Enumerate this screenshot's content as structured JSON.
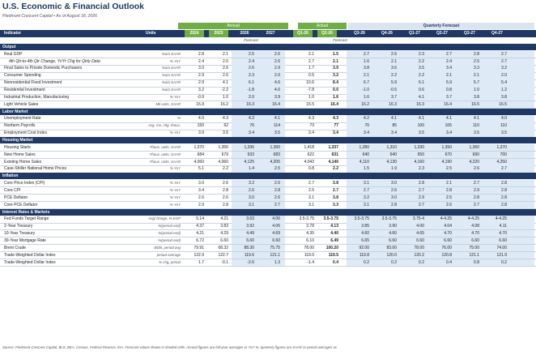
{
  "title": "U.S. Economic & Financial Outlook",
  "subtitle": "Piedmont Crescent Capital  •  As of August 18, 2026",
  "header": {
    "indicator": "Indicator",
    "units": "Units",
    "annual": "Annual",
    "actual": "Actual",
    "quarterly_forecast": "Quarterly Forecast",
    "forecast": "Forecast",
    "columns": [
      "2024",
      "2025",
      "2026",
      "2027",
      "Q1-26",
      "Q2-26",
      "Q3-26",
      "Q4-26",
      "Q1-27",
      "Q2-27",
      "Q3-27",
      "Q4-27"
    ]
  },
  "sections": [
    {
      "title": "Output",
      "rows": [
        {
          "label": "Real GDP",
          "unit": "%a/a SAAR",
          "values": [
            "2.8",
            "2.1",
            "2.5",
            "2.6",
            "2.1",
            "1.5",
            "2.7",
            "2.6",
            "2.3",
            "2.7",
            "2.8",
            "2.7"
          ]
        },
        {
          "label": "4th Qtr-to-4th Qtr Change, Yr/Yr Chg for Qtrly Data",
          "unit": "% YoY",
          "italic": true,
          "values": [
            "2.4",
            "2.0",
            "2.4",
            "2.6",
            "2.7",
            "2.1",
            "1.6",
            "2.1",
            "2.2",
            "2.4",
            "2.5",
            "2.7"
          ]
        },
        {
          "label": "Final Sales to Private Domestic Purchasers",
          "unit": "%a/a SAAR",
          "values": [
            "3.0",
            "2.6",
            "2.6",
            "2.9",
            "1.7",
            "3.9",
            "3.8",
            "3.6",
            "3.5",
            "3.4",
            "3.3",
            "3.2"
          ]
        },
        {
          "label": "Consumer Spending",
          "unit": "%a/a SAAR",
          "values": [
            "2.9",
            "2.6",
            "2.3",
            "2.0",
            "0.5",
            "3.2",
            "2.1",
            "2.2",
            "2.2",
            "2.1",
            "2.1",
            "2.0"
          ]
        },
        {
          "label": "Nonresidential Fixed Investment",
          "unit": "%a/a SAAR",
          "values": [
            "2.9",
            "4.1",
            "6.1",
            "4.6",
            "10.6",
            "8.4",
            "6.7",
            "5.9",
            "6.1",
            "5.9",
            "5.7",
            "5.4"
          ]
        },
        {
          "label": "Residential Investment",
          "unit": "%a/a SAAR",
          "values": [
            "3.2",
            "-2.2",
            "-1.8",
            "4.0",
            "-7.8",
            "0.0",
            "-1.0",
            "-0.5",
            "0.6",
            "0.8",
            "1.0",
            "1.2"
          ]
        },
        {
          "label": "Industrial Production, Manufacturing",
          "unit": "% YoY",
          "values": [
            "-0.9",
            "1.0",
            "2.0",
            "3.9",
            "1.0",
            "1.6",
            "1.6",
            "3.7",
            "4.1",
            "3.7",
            "3.8",
            "3.8"
          ]
        },
        {
          "label": "Light Vehicle Sales",
          "unit": "Mil units, SAAR",
          "values": [
            "15.9",
            "16.2",
            "16.3",
            "16.4",
            "15.5",
            "16.4",
            "16.2",
            "16.3",
            "16.3",
            "16.4",
            "16.5",
            "16.5"
          ]
        }
      ]
    },
    {
      "title": "Labor Market",
      "rows": [
        {
          "label": "Unemployment Rate",
          "unit": "%",
          "values": [
            "4.0",
            "4.3",
            "4.2",
            "4.1",
            "4.3",
            "4.3",
            "4.2",
            "4.1",
            "4.1",
            "4.1",
            "4.1",
            "4.0"
          ]
        },
        {
          "label": "Nonfarm Payrolls",
          "unit": "Avg. mo. chg. thous.",
          "values": [
            "150",
            "62",
            "76",
            "114",
            "73",
            "77",
            "70",
            "85",
            "100",
            "105",
            "110",
            "110"
          ]
        },
        {
          "label": "Employment Cost Index",
          "unit": "% YoY",
          "values": [
            "3.9",
            "3.5",
            "3.4",
            "3.5",
            "3.4",
            "3.4",
            "3.4",
            "3.4",
            "3.5",
            "3.4",
            "3.5",
            "3.5"
          ]
        }
      ]
    },
    {
      "title": "Housing Market",
      "rows": [
        {
          "label": "Housing Starts",
          "unit": "Thous. units, SAAR",
          "values": [
            "1,370",
            "1,356",
            "1,336",
            "1,360",
            "1,418",
            "1,337",
            "1,280",
            "1,310",
            "1,330",
            "1,350",
            "1,360",
            "1,370"
          ]
        },
        {
          "label": "New Home Sales",
          "unit": "Thous. units, SAAR",
          "values": [
            "684",
            "679",
            "633",
            "683",
            "622",
            "631",
            "640",
            "640",
            "650",
            "670",
            "690",
            "700"
          ]
        },
        {
          "label": "Existing Home Sales",
          "unit": "Thous. units, SAAR",
          "values": [
            "4,060",
            "4,060",
            "4,125",
            "4,205",
            "4,043",
            "4,140",
            "4,110",
            "4,130",
            "4,160",
            "4,190",
            "4,220",
            "4,250"
          ]
        },
        {
          "label": "Case-Shiller National Home Prices",
          "unit": "% YoY",
          "values": [
            "5.1",
            "2.2",
            "1.4",
            "2.5",
            "0.8",
            "2.2",
            "1.5",
            "1.9",
            "2.3",
            "2.5",
            "2.6",
            "2.7"
          ]
        }
      ]
    },
    {
      "title": "Inflation",
      "rows": [
        {
          "label": "Core Price Index (CPI)",
          "unit": "% YoY",
          "values": [
            "3.0",
            "2.6",
            "3.2",
            "2.6",
            "2.7",
            "3.8",
            "3.1",
            "3.0",
            "2.8",
            "2.1",
            "2.7",
            "2.8"
          ]
        },
        {
          "label": "Core CPI",
          "unit": "% YoY",
          "values": [
            "3.4",
            "2.8",
            "2.6",
            "2.8",
            "2.5",
            "2.7",
            "2.7",
            "2.6",
            "2.7",
            "2.8",
            "2.9",
            "2.8"
          ]
        },
        {
          "label": "PCE Deflator",
          "unit": "% YoY",
          "values": [
            "2.6",
            "2.6",
            "3.0",
            "2.6",
            "3.1",
            "3.8",
            "3.2",
            "3.0",
            "2.9",
            "2.5",
            "2.8",
            "2.8"
          ]
        },
        {
          "label": "Core PCE Deflator",
          "unit": "% YoY",
          "values": [
            "2.9",
            "2.8",
            "3.1",
            "2.7",
            "3.1",
            "3.3",
            "3.1",
            "2.8",
            "2.7",
            "2.6",
            "2.7",
            "2.8"
          ]
        }
      ]
    },
    {
      "title": "Interest Rates & Markets",
      "rows": [
        {
          "label": "Fed Funds Target Range",
          "unit": "Avg/ Range, % EOP",
          "values": [
            "5.14",
            "4.21",
            "3.63",
            "4.06",
            "3.5-3.75",
            "3.5-3.75",
            "3.5-3.75",
            "3.5-3.75",
            "3.75-4",
            "4-4.25",
            "4-4.25",
            "4-4.25"
          ]
        },
        {
          "label": "2-Year Treasury",
          "unit": "%(period end)",
          "values": [
            "4.37",
            "3.83",
            "3.92",
            "4.06",
            "3.78",
            "4.13",
            "3.85",
            "3.90",
            "4.00",
            "4.04",
            "4.08",
            "4.11"
          ]
        },
        {
          "label": "10-Year Treasury",
          "unit": "%(period end)",
          "values": [
            "4.21",
            "4.29",
            "4.49",
            "4.69",
            "4.35",
            "4.40",
            "4.60",
            "4.60",
            "4.65",
            "4.70",
            "4.70",
            "4.70"
          ]
        },
        {
          "label": "30-Year Mortgage Rate",
          "unit": "%(period end)",
          "values": [
            "6.72",
            "6.60",
            "6.60",
            "6.60",
            "6.10",
            "6.49",
            "6.65",
            "6.60",
            "6.60",
            "6.60",
            "6.60",
            "6.60"
          ]
        },
        {
          "label": "Brent Crude",
          "unit": "$/bbl, period avg",
          "values": [
            "79.91",
            "68.32",
            "88.30",
            "75.75",
            "78.00",
            "100.20",
            "92.00",
            "83.00",
            "78.00",
            "76.00",
            "75.00",
            "74.00"
          ]
        },
        {
          "label": "Trade-Weighted Dollar Index",
          "unit": "period average",
          "values": [
            "122.9",
            "122.7",
            "119.6",
            "121.1",
            "119.0",
            "119.5",
            "119.8",
            "120.0",
            "120.2",
            "120.8",
            "121.1",
            "121.9"
          ]
        },
        {
          "label": "Trade-Weighted Dollar Index",
          "unit": "% chg, period",
          "values": [
            "1.7",
            "-0.1",
            "-2.6",
            "1.3",
            "-1.4",
            "0.4",
            "0.2",
            "0.2",
            "0.2",
            "0.4",
            "0.8",
            "0.2"
          ]
        }
      ]
    }
  ],
  "footnote": "Source: Piedmont Crescent Capital, BLS, BEA, Census, Federal Reserve, EIA. Forecast values shown in shaded cells. Annual figures are full-year averages or YoY %; quarterly figures are SAAR or period-averages as"
}
